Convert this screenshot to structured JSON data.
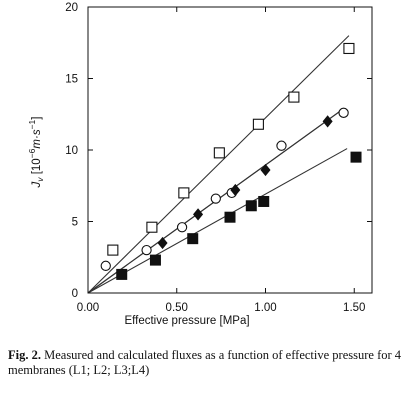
{
  "caption": {
    "label": "Fig. 2.",
    "text": "Measured and calculated fluxes as a function of effective pressure for 4 membranes (L1; L2; L3;L4)"
  },
  "chart_data": {
    "type": "scatter",
    "xlabel": "Effective pressure [MPa]",
    "ylabel": "Jv [10−6m·s−1]",
    "ylabel_parts": {
      "main": "J",
      "sub": "v",
      "bracket_open": " [10",
      "sup": "−6",
      "unit_mid": "m·s",
      "sup2": "−1",
      "bracket_close": "]"
    },
    "xlim": [
      0,
      1.6
    ],
    "ylim": [
      0,
      20
    ],
    "xticks": [
      0.0,
      0.5,
      1.0,
      1.5
    ],
    "xtick_labels": [
      "0.00",
      "0.50",
      "1.00",
      "1.50"
    ],
    "yticks": [
      0,
      5,
      10,
      15,
      20
    ],
    "ytick_labels": [
      "0",
      "5",
      "10",
      "15",
      "20"
    ],
    "grid": false,
    "colors": {
      "axis": "#111111",
      "marker": "#111111",
      "line": "#333333"
    },
    "series": [
      {
        "marker": "open-square",
        "x": [
          0.14,
          0.36,
          0.54,
          0.74,
          0.96,
          1.16,
          1.47
        ],
        "y": [
          3.0,
          4.6,
          7.0,
          9.8,
          11.8,
          13.7,
          17.1
        ],
        "fit": {
          "x": [
            0,
            1.47
          ],
          "y": [
            0,
            18.0
          ]
        }
      },
      {
        "marker": "open-circle",
        "x": [
          0.1,
          0.33,
          0.53,
          0.72,
          0.81,
          1.09,
          1.44
        ],
        "y": [
          1.9,
          3.0,
          4.6,
          6.6,
          7.0,
          10.3,
          12.6
        ],
        "fit": {
          "x": [
            0,
            1.43
          ],
          "y": [
            0,
            12.8
          ]
        }
      },
      {
        "marker": "filled-diamond",
        "x": [
          0.42,
          0.62,
          0.83,
          1.0,
          1.35
        ],
        "y": [
          3.5,
          5.5,
          7.2,
          8.6,
          12.0
        ],
        "fit": {
          "x": [
            0,
            1.43
          ],
          "y": [
            0,
            12.8
          ]
        }
      },
      {
        "marker": "filled-square",
        "x": [
          0.19,
          0.38,
          0.59,
          0.8,
          0.92,
          0.99,
          1.51
        ],
        "y": [
          1.3,
          2.3,
          3.8,
          5.3,
          6.1,
          6.4,
          9.5
        ],
        "fit": {
          "x": [
            0,
            1.46
          ],
          "y": [
            0,
            10.1
          ]
        }
      }
    ]
  }
}
